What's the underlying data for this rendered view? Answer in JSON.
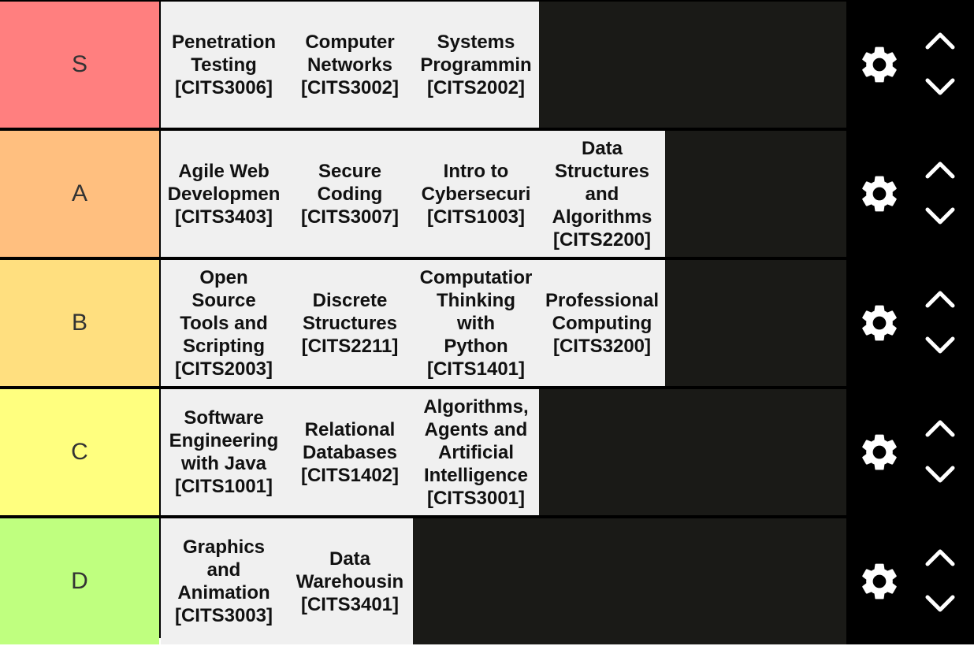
{
  "tiers": [
    {
      "label": "S",
      "color": "#ff7f7f",
      "items": [
        "Penetration\nTesting\n[CITS3006]",
        "Computer\nNetworks\n[CITS3002]",
        "Systems\nProgrammin\n[CITS2002]"
      ]
    },
    {
      "label": "A",
      "color": "#ffbf7f",
      "items": [
        "Agile Web\nDevelopmen\n[CITS3403]",
        "Secure\nCoding\n[CITS3007]",
        "Intro to\nCybersecuri\n[CITS1003]",
        "Data\nStructures\nand\nAlgorithms\n[CITS2200]"
      ]
    },
    {
      "label": "B",
      "color": "#ffdf7f",
      "items": [
        "Open\nSource\nTools and\nScripting\n[CITS2003]",
        "Discrete\nStructures\n[CITS2211]",
        "Computatior\nThinking\nwith\nPython\n[CITS1401]",
        "Professional\nComputing\n[CITS3200]"
      ]
    },
    {
      "label": "C",
      "color": "#ffff7f",
      "items": [
        "Software\nEngineering\nwith Java\n[CITS1001]",
        "Relational\nDatabases\n[CITS1402]",
        "Algorithms,\nAgents and\nArtificial\nIntelligence\n[CITS3001]"
      ]
    },
    {
      "label": "D",
      "color": "#bfff7f",
      "items": [
        "Graphics\nand\nAnimation\n[CITS3003]",
        "Data\nWarehousin\n[CITS3401]"
      ]
    }
  ],
  "controls": {
    "settings_icon": "gear-icon",
    "move_up_icon": "chevron-up-icon",
    "move_down_icon": "chevron-down-icon"
  },
  "colors": {
    "board_background": "#000000",
    "item_area_background": "#1a1a17",
    "card_background": "#f0f0f0",
    "control_icon": "#ffffff"
  }
}
